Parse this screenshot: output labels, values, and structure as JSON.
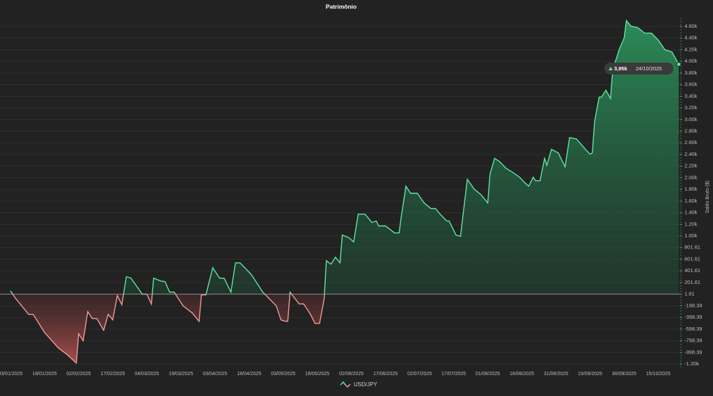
{
  "chart_data": {
    "type": "area",
    "title": "Patrimônio",
    "y_label": "Saldo Bruto ($)",
    "xlim": [
      "03/01/2025",
      "25/10/2025"
    ],
    "xticks": [
      "03/01/2025",
      "18/01/2025",
      "02/02/2025",
      "17/02/2025",
      "04/03/2025",
      "19/03/2025",
      "03/04/2025",
      "18/04/2025",
      "03/05/2025",
      "18/05/2025",
      "02/06/2025",
      "17/06/2025",
      "02/07/2025",
      "17/07/2025",
      "01/08/2025",
      "16/08/2025",
      "31/08/2025",
      "15/09/2025",
      "30/09/2025",
      "15/10/2025"
    ],
    "ylim": [
      -1258,
      4745
    ],
    "yticks": [
      {
        "value": 4601.61,
        "label": "4.60k"
      },
      {
        "value": 4401.61,
        "label": "4.40k"
      },
      {
        "value": 4201.61,
        "label": "4.20k"
      },
      {
        "value": 4001.61,
        "label": "4.00k"
      },
      {
        "value": 3801.61,
        "label": "3.80k"
      },
      {
        "value": 3601.61,
        "label": "3.60k"
      },
      {
        "value": 3401.61,
        "label": "3.40k"
      },
      {
        "value": 3201.61,
        "label": "3.20k"
      },
      {
        "value": 3001.61,
        "label": "3.00k"
      },
      {
        "value": 2801.61,
        "label": "2.80k"
      },
      {
        "value": 2601.61,
        "label": "2.60k"
      },
      {
        "value": 2401.61,
        "label": "2.40k"
      },
      {
        "value": 2201.61,
        "label": "2.20k"
      },
      {
        "value": 2001.61,
        "label": "2.00k"
      },
      {
        "value": 1801.61,
        "label": "1.80k"
      },
      {
        "value": 1601.61,
        "label": "1.60k"
      },
      {
        "value": 1401.61,
        "label": "1.40k"
      },
      {
        "value": 1201.61,
        "label": "1.20k"
      },
      {
        "value": 1001.61,
        "label": "1.00k"
      },
      801.61,
      601.61,
      401.61,
      201.61,
      1.61,
      -198.39,
      -398.39,
      -598.39,
      -798.39,
      -998.39,
      {
        "value": -1198.39,
        "label": "-1.20k"
      }
    ],
    "baseline": 1.61,
    "grid": true,
    "x": [
      "03/01/2025",
      "05/01/2025",
      "11/01/2025",
      "13/01/2025",
      "18/01/2025",
      "24/01/2025",
      "28/01/2025",
      "01/02/2025",
      "02/02/2025",
      "04/02/2025",
      "06/02/2025",
      "08/02/2025",
      "10/02/2025",
      "13/02/2025",
      "15/02/2025",
      "17/02/2025",
      "19/02/2025",
      "21/02/2025",
      "23/02/2025",
      "25/02/2025",
      "02/03/2025",
      "04/03/2025",
      "06/03/2025",
      "07/03/2025",
      "10/03/2025",
      "12/03/2025",
      "14/03/2025",
      "16/03/2025",
      "20/03/2025",
      "24/03/2025",
      "27/03/2025",
      "28/03/2025",
      "30/03/2025",
      "02/04/2025",
      "05/04/2025",
      "07/04/2025",
      "10/04/2025",
      "12/04/2025",
      "14/04/2025",
      "19/04/2025",
      "21/04/2025",
      "24/04/2025",
      "27/04/2025",
      "30/04/2025",
      "02/05/2025",
      "04/05/2025",
      "05/05/2025",
      "06/05/2025",
      "10/05/2025",
      "12/05/2025",
      "15/05/2025",
      "17/05/2025",
      "19/05/2025",
      "21/05/2025",
      "22/05/2025",
      "24/05/2025",
      "26/05/2025",
      "28/05/2025",
      "29/05/2025",
      "01/06/2025",
      "03/06/2025",
      "05/06/2025",
      "08/06/2025",
      "11/06/2025",
      "13/06/2025",
      "14/06/2025",
      "17/06/2025",
      "21/06/2025",
      "23/06/2025",
      "24/06/2025",
      "26/06/2025",
      "28/06/2025",
      "01/07/2025",
      "04/07/2025",
      "07/07/2025",
      "09/07/2025",
      "11/07/2025",
      "14/07/2025",
      "15/07/2025",
      "18/07/2025",
      "20/07/2025",
      "23/07/2025",
      "26/07/2025",
      "29/07/2025",
      "01/08/2025",
      "02/08/2025",
      "04/08/2025",
      "06/08/2025",
      "09/08/2025",
      "12/08/2025",
      "15/08/2025",
      "17/08/2025",
      "19/08/2025",
      "21/08/2025",
      "22/08/2025",
      "24/08/2025",
      "26/08/2025",
      "27/08/2025",
      "29/08/2025",
      "01/09/2025",
      "04/09/2025",
      "06/09/2025",
      "09/09/2025",
      "13/09/2025",
      "15/09/2025",
      "16/09/2025",
      "17/09/2025",
      "19/09/2025",
      "20/09/2025",
      "22/09/2025",
      "24/09/2025",
      "25/09/2025",
      "28/09/2025",
      "30/09/2025",
      "01/10/2025",
      "03/10/2025",
      "06/10/2025",
      "09/10/2025",
      "12/10/2025",
      "15/10/2025",
      "18/10/2025",
      "21/10/2025",
      "24/10/2025"
    ],
    "series": [
      {
        "name": "USD/JPY",
        "color": "#5ee6a3",
        "negative_color": "#f29a9a",
        "values": [
          61,
          -58,
          -345,
          -345,
          -656,
          -920,
          -1039,
          -1183,
          -680,
          -800,
          -297,
          -417,
          -417,
          -620,
          -345,
          -441,
          -22,
          -178,
          301,
          277,
          2,
          2,
          -166,
          277,
          229,
          217,
          37,
          37,
          -202,
          -321,
          -465,
          -10,
          -10,
          456,
          277,
          277,
          37,
          540,
          540,
          337,
          217,
          37,
          -82,
          -202,
          -441,
          -465,
          -465,
          37,
          -166,
          -166,
          -345,
          -501,
          -501,
          -82,
          576,
          516,
          636,
          540,
          1018,
          970,
          899,
          1377,
          1377,
          1234,
          1258,
          1174,
          1174,
          1054,
          1054,
          1353,
          1856,
          1736,
          1736,
          1569,
          1473,
          1473,
          1377,
          1258,
          1258,
          1018,
          995,
          1975,
          1808,
          1712,
          1569,
          2070,
          2335,
          2286,
          2166,
          2094,
          2011,
          1928,
          1856,
          2011,
          1951,
          1951,
          2335,
          2215,
          2490,
          2430,
          2191,
          2693,
          2669,
          2490,
          2406,
          2430,
          2968,
          3387,
          3387,
          3506,
          3363,
          3865,
          4224,
          4403,
          4702,
          4606,
          4582,
          4487,
          4487,
          4367,
          4200,
          4164,
          3950
        ]
      }
    ],
    "tooltip": {
      "label": "3,95k",
      "date": "24/10/2025"
    }
  }
}
